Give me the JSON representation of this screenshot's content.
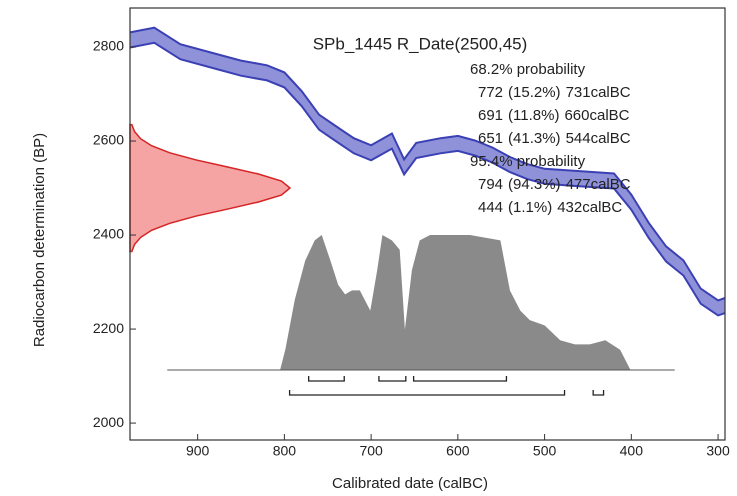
{
  "chart_data": {
    "type": "calibration",
    "title": "SPb_1445 R_Date(2500,45)",
    "x_label": "Calibrated date (calBC)",
    "y_label": "Radiocarbon determination (BP)",
    "xlim": [
      978,
      292
    ],
    "ylim": [
      1964,
      2883
    ],
    "xticks": [
      900,
      800,
      700,
      600,
      500,
      400,
      300
    ],
    "yticks": [
      2000,
      2200,
      2400,
      2600,
      2800
    ],
    "curve": {
      "color": "#3b40b4",
      "fill": "#8f92d8",
      "x": [
        978,
        950,
        920,
        880,
        850,
        820,
        800,
        780,
        760,
        740,
        720,
        700,
        676,
        662,
        648,
        620,
        600,
        580,
        560,
        540,
        520,
        500,
        460,
        420,
        400,
        380,
        360,
        340,
        320,
        300,
        292
      ],
      "upper": [
        2831,
        2841,
        2806,
        2786,
        2771,
        2761,
        2746,
        2706,
        2656,
        2631,
        2606,
        2591,
        2616,
        2561,
        2596,
        2606,
        2611,
        2601,
        2586,
        2566,
        2551,
        2541,
        2536,
        2531,
        2486,
        2426,
        2376,
        2346,
        2286,
        2261,
        2266
      ],
      "lower": [
        2799,
        2809,
        2774,
        2754,
        2739,
        2729,
        2714,
        2674,
        2624,
        2599,
        2574,
        2559,
        2584,
        2529,
        2564,
        2574,
        2579,
        2569,
        2554,
        2534,
        2519,
        2509,
        2504,
        2499,
        2454,
        2394,
        2344,
        2314,
        2254,
        2229,
        2234
      ]
    },
    "measurement": {
      "color": "#d42424",
      "fill": "#f5a3a3",
      "y": [
        2365,
        2380,
        2395,
        2410,
        2425,
        2440,
        2455,
        2470,
        2485,
        2500,
        2515,
        2530,
        2545,
        2560,
        2575,
        2590,
        2605,
        2620,
        2635
      ],
      "values": [
        0.011,
        0.029,
        0.066,
        0.135,
        0.249,
        0.41,
        0.607,
        0.8,
        0.946,
        1,
        0.946,
        0.8,
        0.607,
        0.41,
        0.249,
        0.135,
        0.066,
        0.029,
        0.011
      ]
    },
    "posterior": {
      "color": "#8a8a8a",
      "x": [
        935,
        805,
        799,
        788,
        776,
        765,
        757,
        747,
        738,
        730,
        722,
        713,
        701,
        693,
        687,
        676,
        667,
        661,
        653,
        644,
        632,
        586,
        551,
        540,
        528,
        517,
        500,
        482,
        465,
        448,
        430,
        413,
        401,
        350
      ],
      "values": [
        0,
        0,
        0.15,
        0.52,
        0.81,
        0.96,
        1,
        0.81,
        0.63,
        0.56,
        0.59,
        0.59,
        0.44,
        0.74,
        1,
        0.96,
        0.89,
        0.3,
        0.74,
        0.96,
        1,
        1,
        0.96,
        0.59,
        0.44,
        0.37,
        0.33,
        0.22,
        0.19,
        0.19,
        0.22,
        0.15,
        0,
        0
      ]
    },
    "groups": [
      {
        "label": "68.2% probability",
        "ranges": [
          {
            "from": 772,
            "prob_label": "(15.2%)",
            "to": 731,
            "to_label": "731calBC"
          },
          {
            "from": 691,
            "prob_label": "(11.8%)",
            "to": 660,
            "to_label": "660calBC"
          },
          {
            "from": 651,
            "prob_label": "(41.3%)",
            "to": 544,
            "to_label": "544calBC"
          }
        ]
      },
      {
        "label": "95.4% probability",
        "ranges": [
          {
            "from": 794,
            "prob_label": "(94.3%)",
            "to": 477,
            "to_label": "477calBC"
          },
          {
            "from": 444,
            "prob_label": "(1.1%)",
            "to": 432,
            "to_label": "432calBC"
          }
        ]
      }
    ]
  }
}
